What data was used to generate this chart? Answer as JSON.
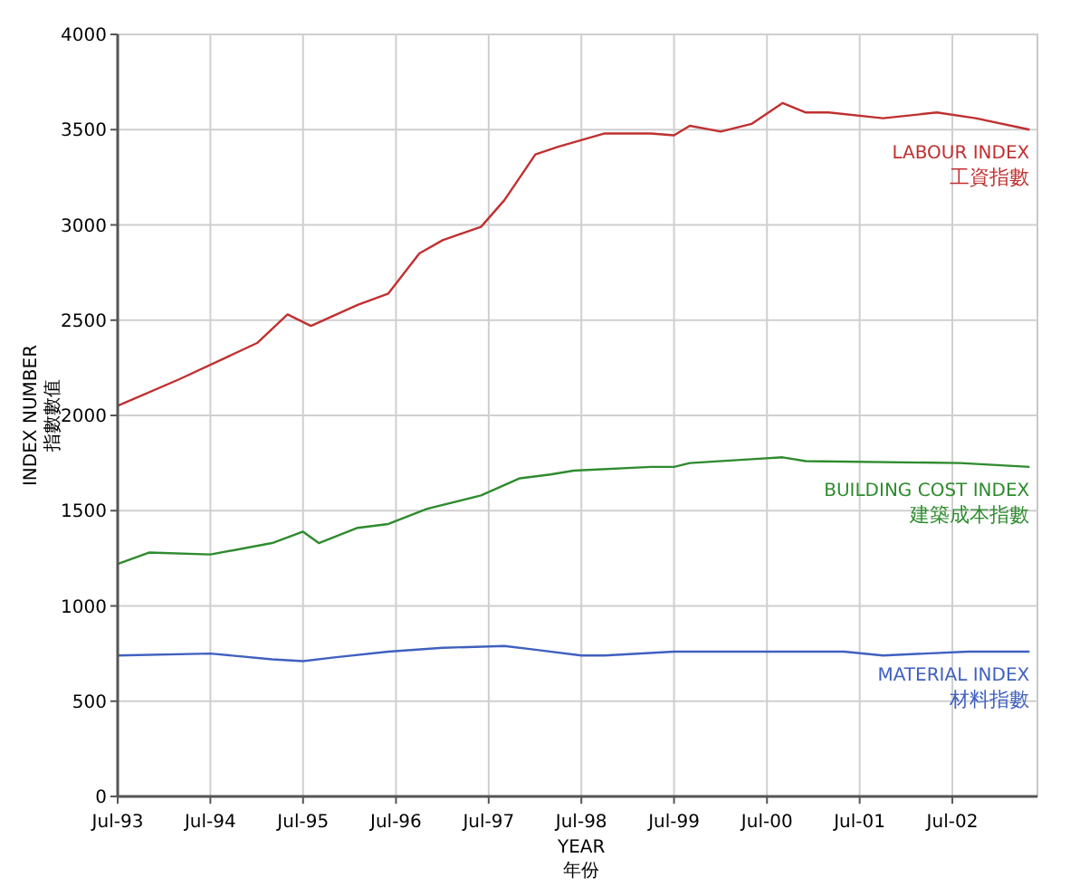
{
  "chart_data": {
    "type": "line",
    "xlabel": "YEAR\n年份",
    "ylabel": "INDEX NUMBER\n指數數值",
    "xlim": [
      "1993-07",
      "2003-06"
    ],
    "xticks": [
      {
        "value": "1993-07",
        "label": "Jul-93"
      },
      {
        "value": "1994-07",
        "label": "Jul-94"
      },
      {
        "value": "1995-07",
        "label": "Jul-95"
      },
      {
        "value": "1996-07",
        "label": "Jul-96"
      },
      {
        "value": "1997-07",
        "label": "Jul-97"
      },
      {
        "value": "1998-07",
        "label": "Jul-98"
      },
      {
        "value": "1999-07",
        "label": "Jul-99"
      },
      {
        "value": "2000-07",
        "label": "Jul-00"
      },
      {
        "value": "2001-07",
        "label": "Jul-01"
      },
      {
        "value": "2002-07",
        "label": "Jul-02"
      }
    ],
    "ylim": [
      0,
      4000
    ],
    "yticks": [
      0,
      500,
      1000,
      1500,
      2000,
      2500,
      3000,
      3500,
      4000
    ],
    "grid": true,
    "series": [
      {
        "name": "LABOUR INDEX\n工資指數",
        "color": "#c03030",
        "x": [
          "1993-07",
          "1994-03",
          "1995-01",
          "1995-05",
          "1995-08",
          "1996-02",
          "1996-06",
          "1996-10",
          "1997-01",
          "1997-06",
          "1997-09",
          "1998-01",
          "1998-04",
          "1998-10",
          "1999-04",
          "1999-07",
          "1999-09",
          "2000-01",
          "2000-05",
          "2000-09",
          "2000-12",
          "2001-03",
          "2001-10",
          "2002-05",
          "2002-10",
          "2003-05"
        ],
        "values": [
          2050,
          2190,
          2380,
          2530,
          2470,
          2580,
          2640,
          2850,
          2920,
          2990,
          3130,
          3370,
          3410,
          3480,
          3480,
          3470,
          3520,
          3490,
          3530,
          3640,
          3590,
          3590,
          3560,
          3590,
          3560,
          3500
        ]
      },
      {
        "name": "BUILDING COST INDEX\n建築成本指數",
        "color": "#2e8b2e",
        "x": [
          "1993-07",
          "1993-11",
          "1994-07",
          "1995-03",
          "1995-07",
          "1995-09",
          "1996-02",
          "1996-06",
          "1996-11",
          "1997-06",
          "1997-11",
          "1998-03",
          "1998-06",
          "1999-04",
          "1999-07",
          "1999-09",
          "2000-05",
          "2000-09",
          "2000-12",
          "2002-08",
          "2003-05"
        ],
        "values": [
          1220,
          1280,
          1270,
          1330,
          1390,
          1330,
          1410,
          1430,
          1510,
          1580,
          1670,
          1690,
          1710,
          1730,
          1730,
          1750,
          1770,
          1780,
          1760,
          1750,
          1730
        ]
      },
      {
        "name": "MATERIAL INDEX\n材料指數",
        "color": "#4060c0",
        "x": [
          "1993-07",
          "1994-07",
          "1995-03",
          "1995-07",
          "1995-11",
          "1996-06",
          "1997-01",
          "1997-09",
          "1998-01",
          "1998-07",
          "1998-10",
          "1999-07",
          "2001-05",
          "2001-10",
          "2002-09",
          "2003-05"
        ],
        "values": [
          740,
          750,
          720,
          710,
          730,
          760,
          780,
          790,
          770,
          740,
          740,
          760,
          760,
          740,
          760,
          760
        ]
      }
    ]
  }
}
